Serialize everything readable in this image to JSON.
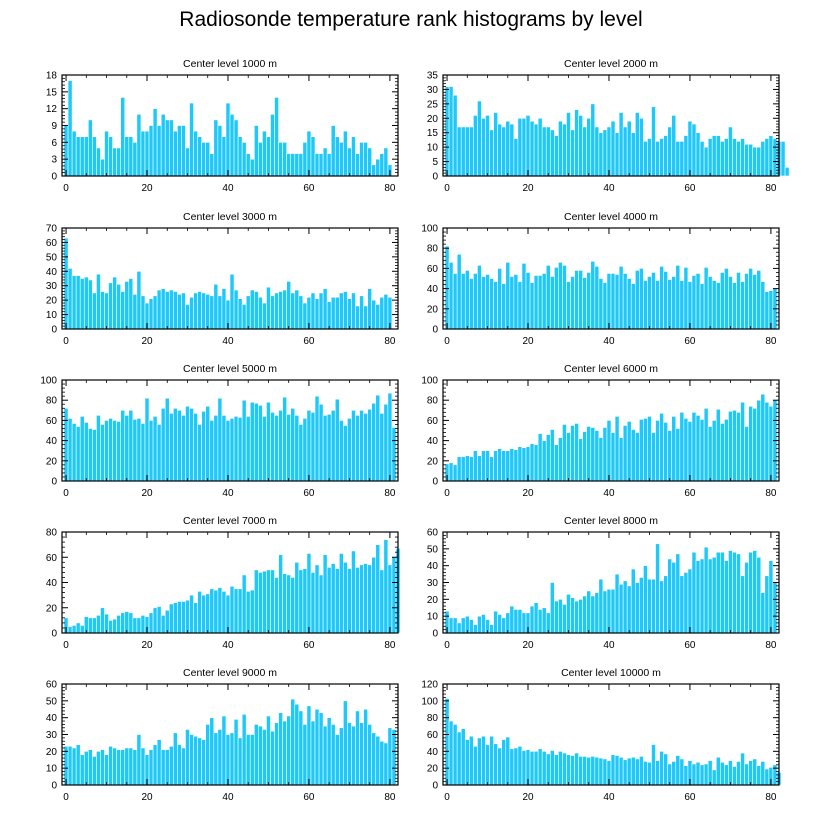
{
  "title": "Radiosonde temperature rank histograms by level",
  "colors": {
    "bar": "#1EC8F8",
    "bar_edge": "#ffffff",
    "axis": "#000000"
  },
  "chart_data": [
    {
      "type": "bar",
      "title": "Center level 1000 m",
      "x_start": 0,
      "ylim": [
        0,
        18
      ],
      "yticks": [
        0,
        3,
        6,
        9,
        12,
        15,
        18
      ],
      "xlim": [
        -1,
        82
      ],
      "xticks": [
        0,
        20,
        40,
        60,
        80
      ],
      "values": [
        9,
        17,
        8,
        7,
        7,
        7,
        10,
        7,
        5,
        3,
        8,
        7,
        5,
        5,
        14,
        7,
        7,
        6,
        11,
        8,
        8,
        9,
        12,
        9,
        11,
        10,
        10,
        8,
        9,
        9,
        5,
        13,
        8,
        7,
        6,
        6,
        4,
        10,
        9,
        7,
        13,
        11,
        10,
        7,
        6,
        4,
        3,
        9,
        6,
        8,
        7,
        11,
        14,
        6,
        6,
        4,
        4,
        4,
        4,
        6,
        8,
        7,
        4,
        4,
        5,
        4,
        9,
        7,
        6,
        8,
        5,
        7,
        4,
        6,
        6,
        5,
        2,
        3,
        4,
        5,
        2
      ]
    },
    {
      "type": "bar",
      "title": "Center level 2000 m",
      "x_start": 0,
      "ylim": [
        0,
        35
      ],
      "yticks": [
        0,
        5,
        10,
        15,
        20,
        25,
        30,
        35
      ],
      "xlim": [
        -1,
        82
      ],
      "xticks": [
        0,
        20,
        40,
        60,
        80
      ],
      "values": [
        31,
        31,
        28,
        17,
        17,
        17,
        17,
        21,
        26,
        20,
        21,
        16,
        22,
        18,
        17,
        19,
        18,
        13,
        20,
        20,
        21,
        19,
        18,
        20,
        17,
        17,
        16,
        14,
        19,
        18,
        22,
        16,
        23,
        21,
        17,
        20,
        25,
        17,
        15,
        16,
        17,
        19,
        15,
        22,
        17,
        19,
        15,
        22,
        20,
        12,
        13,
        24,
        12,
        13,
        14,
        17,
        21,
        12,
        12,
        14,
        19,
        18,
        15,
        12,
        10,
        13,
        14,
        14,
        12,
        13,
        17,
        13,
        12,
        13,
        11,
        11,
        10,
        10,
        12,
        13,
        14,
        13,
        12,
        12,
        3
      ]
    },
    {
      "type": "bar",
      "title": "Center level 3000 m",
      "x_start": 0,
      "ylim": [
        0,
        70
      ],
      "yticks": [
        0,
        10,
        20,
        30,
        40,
        50,
        60,
        70
      ],
      "xlim": [
        -1,
        82
      ],
      "xticks": [
        0,
        20,
        40,
        60,
        80
      ],
      "values": [
        63,
        42,
        37,
        37,
        35,
        36,
        34,
        25,
        38,
        26,
        25,
        32,
        36,
        31,
        26,
        33,
        35,
        24,
        40,
        23,
        18,
        21,
        23,
        27,
        28,
        26,
        27,
        26,
        24,
        25,
        17,
        22,
        25,
        26,
        25,
        24,
        23,
        31,
        23,
        28,
        20,
        38,
        27,
        21,
        17,
        23,
        27,
        26,
        22,
        18,
        29,
        23,
        25,
        26,
        27,
        33,
        25,
        27,
        23,
        18,
        22,
        25,
        21,
        25,
        28,
        19,
        22,
        22,
        25,
        26,
        21,
        25,
        16,
        23,
        16,
        28,
        20,
        17,
        22,
        24,
        22
      ]
    },
    {
      "type": "bar",
      "title": "Center level 4000 m",
      "x_start": 0,
      "ylim": [
        0,
        100
      ],
      "yticks": [
        0,
        20,
        40,
        60,
        80,
        100
      ],
      "xlim": [
        -1,
        82
      ],
      "xticks": [
        0,
        20,
        40,
        60,
        80
      ],
      "values": [
        82,
        66,
        55,
        74,
        55,
        58,
        50,
        55,
        63,
        52,
        54,
        50,
        47,
        60,
        45,
        66,
        52,
        54,
        47,
        65,
        56,
        46,
        53,
        53,
        55,
        63,
        52,
        61,
        66,
        63,
        47,
        52,
        58,
        58,
        51,
        56,
        67,
        62,
        50,
        46,
        55,
        55,
        54,
        62,
        55,
        50,
        45,
        58,
        60,
        48,
        52,
        56,
        48,
        62,
        57,
        49,
        52,
        63,
        48,
        61,
        47,
        53,
        55,
        45,
        61,
        52,
        48,
        46,
        56,
        60,
        52,
        46,
        56,
        47,
        55,
        60,
        54,
        58,
        47,
        37,
        38,
        40
      ]
    },
    {
      "type": "bar",
      "title": "Center level 5000 m",
      "x_start": 0,
      "ylim": [
        0,
        100
      ],
      "yticks": [
        0,
        20,
        40,
        60,
        80,
        100
      ],
      "xlim": [
        -1,
        82
      ],
      "xticks": [
        0,
        20,
        40,
        60,
        80
      ],
      "values": [
        72,
        62,
        57,
        54,
        64,
        58,
        52,
        51,
        65,
        56,
        60,
        62,
        60,
        59,
        70,
        65,
        70,
        61,
        62,
        57,
        82,
        60,
        64,
        56,
        72,
        82,
        67,
        72,
        70,
        65,
        74,
        72,
        67,
        56,
        69,
        74,
        60,
        65,
        82,
        65,
        60,
        62,
        64,
        63,
        80,
        64,
        78,
        77,
        75,
        64,
        78,
        68,
        65,
        70,
        83,
        66,
        72,
        65,
        56,
        62,
        70,
        68,
        84,
        76,
        65,
        66,
        70,
        81,
        60,
        55,
        62,
        70,
        65,
        70,
        67,
        71,
        77,
        85,
        67,
        76,
        87,
        53
      ]
    },
    {
      "type": "bar",
      "title": "Center level 6000 m",
      "x_start": 0,
      "ylim": [
        0,
        100
      ],
      "yticks": [
        0,
        20,
        40,
        60,
        80,
        100
      ],
      "xlim": [
        -1,
        82
      ],
      "xticks": [
        0,
        20,
        40,
        60,
        80
      ],
      "values": [
        17,
        18,
        16,
        24,
        24,
        25,
        24,
        30,
        25,
        30,
        30,
        24,
        30,
        32,
        30,
        30,
        32,
        31,
        34,
        33,
        34,
        37,
        36,
        47,
        40,
        46,
        51,
        36,
        43,
        56,
        48,
        55,
        57,
        42,
        49,
        54,
        53,
        50,
        43,
        53,
        60,
        48,
        64,
        43,
        55,
        59,
        51,
        48,
        61,
        62,
        64,
        48,
        60,
        67,
        58,
        50,
        64,
        52,
        68,
        62,
        59,
        68,
        65,
        61,
        72,
        54,
        60,
        71,
        57,
        61,
        69,
        70,
        68,
        78,
        54,
        74,
        72,
        80,
        86,
        78,
        74,
        80
      ]
    },
    {
      "type": "bar",
      "title": "Center level 7000 m",
      "x_start": 0,
      "ylim": [
        0,
        80
      ],
      "yticks": [
        0,
        20,
        40,
        60,
        80
      ],
      "xlim": [
        -1,
        82
      ],
      "xticks": [
        0,
        20,
        40,
        60,
        80
      ],
      "values": [
        12,
        5,
        6,
        8,
        6,
        13,
        12,
        12,
        14,
        20,
        15,
        10,
        11,
        14,
        16,
        17,
        16,
        12,
        12,
        14,
        13,
        16,
        20,
        21,
        14,
        18,
        23,
        24,
        25,
        25,
        26,
        30,
        24,
        33,
        30,
        31,
        35,
        34,
        36,
        33,
        30,
        37,
        35,
        35,
        46,
        33,
        34,
        50,
        48,
        49,
        50,
        50,
        44,
        62,
        47,
        46,
        44,
        56,
        50,
        51,
        63,
        48,
        54,
        46,
        62,
        52,
        55,
        51,
        63,
        56,
        51,
        65,
        52,
        54,
        55,
        54,
        60,
        70,
        50,
        74,
        54,
        60,
        67
      ]
    },
    {
      "type": "bar",
      "title": "Center level 8000 m",
      "x_start": 0,
      "ylim": [
        0,
        60
      ],
      "yticks": [
        0,
        10,
        20,
        30,
        40,
        50,
        60
      ],
      "xlim": [
        -1,
        82
      ],
      "xticks": [
        0,
        20,
        40,
        60,
        80
      ],
      "values": [
        13,
        9,
        9,
        6,
        9,
        10,
        8,
        5,
        10,
        11,
        8,
        5,
        13,
        11,
        9,
        12,
        16,
        14,
        14,
        12,
        12,
        16,
        18,
        14,
        15,
        12,
        30,
        19,
        20,
        17,
        23,
        21,
        19,
        20,
        22,
        25,
        22,
        24,
        32,
        25,
        26,
        26,
        35,
        29,
        31,
        28,
        38,
        30,
        33,
        40,
        32,
        32,
        53,
        31,
        34,
        44,
        42,
        47,
        34,
        36,
        38,
        48,
        43,
        44,
        51,
        44,
        45,
        48,
        48,
        43,
        49,
        48,
        47,
        34,
        42,
        48,
        49,
        45,
        24,
        34,
        43,
        30
      ]
    },
    {
      "type": "bar",
      "title": "Center level 9000 m",
      "x_start": 0,
      "ylim": [
        0,
        60
      ],
      "yticks": [
        0,
        10,
        20,
        30,
        40,
        50,
        60
      ],
      "xlim": [
        -1,
        82
      ],
      "xticks": [
        0,
        20,
        40,
        60,
        80
      ],
      "values": [
        23,
        23,
        22,
        24,
        18,
        20,
        21,
        17,
        20,
        21,
        18,
        23,
        22,
        21,
        21,
        22,
        22,
        21,
        30,
        22,
        18,
        21,
        24,
        27,
        21,
        21,
        23,
        31,
        24,
        22,
        33,
        30,
        29,
        28,
        27,
        36,
        40,
        31,
        33,
        41,
        30,
        31,
        39,
        28,
        42,
        30,
        30,
        36,
        35,
        33,
        41,
        32,
        37,
        43,
        38,
        41,
        51,
        48,
        44,
        36,
        47,
        38,
        45,
        43,
        35,
        40,
        36,
        30,
        34,
        50,
        37,
        35,
        44,
        37,
        45,
        36,
        31,
        29,
        26,
        25,
        34,
        33
      ]
    },
    {
      "type": "bar",
      "title": "Center level 10000 m",
      "x_start": 0,
      "ylim": [
        0,
        120
      ],
      "yticks": [
        0,
        20,
        40,
        60,
        80,
        100,
        120
      ],
      "xlim": [
        -1,
        82
      ],
      "xticks": [
        0,
        20,
        40,
        60,
        80
      ],
      "values": [
        103,
        76,
        72,
        63,
        67,
        54,
        58,
        46,
        56,
        58,
        48,
        58,
        49,
        44,
        54,
        57,
        43,
        44,
        46,
        41,
        42,
        40,
        40,
        43,
        40,
        37,
        41,
        36,
        40,
        38,
        36,
        35,
        38,
        34,
        34,
        33,
        34,
        33,
        32,
        31,
        29,
        36,
        35,
        33,
        30,
        32,
        33,
        31,
        34,
        28,
        27,
        48,
        29,
        40,
        37,
        25,
        28,
        35,
        31,
        23,
        29,
        25,
        27,
        24,
        25,
        29,
        18,
        33,
        27,
        24,
        29,
        22,
        28,
        38,
        25,
        29,
        31,
        23,
        28,
        19,
        21,
        24,
        15
      ]
    }
  ]
}
